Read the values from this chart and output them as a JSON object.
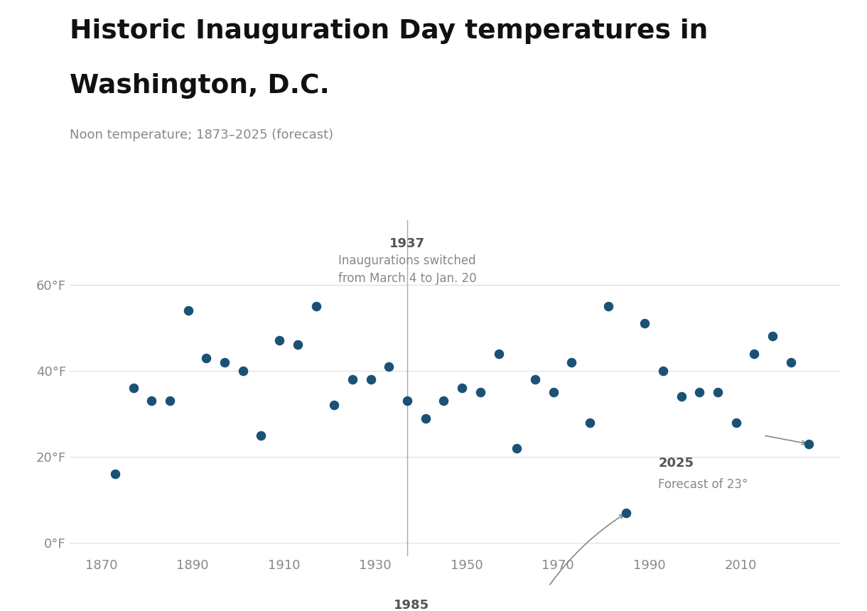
{
  "title_line1": "Historic Inauguration Day temperatures in",
  "title_line2": "Washington, D.C.",
  "subtitle": "Noon temperature; 1873–2025 (forecast)",
  "dot_color": "#1a5276",
  "background_color": "#ffffff",
  "xlim": [
    1863,
    2032
  ],
  "ylim": [
    -3,
    75
  ],
  "yticks": [
    0,
    20,
    40,
    60
  ],
  "ytick_labels": [
    "0°F",
    "20°F",
    "40°F",
    "60°F"
  ],
  "xticks": [
    1870,
    1890,
    1910,
    1930,
    1950,
    1970,
    1990,
    2010
  ],
  "vline_x": 1937,
  "data": [
    [
      1873,
      16
    ],
    [
      1877,
      36
    ],
    [
      1881,
      33
    ],
    [
      1885,
      33
    ],
    [
      1889,
      54
    ],
    [
      1893,
      43
    ],
    [
      1897,
      42
    ],
    [
      1901,
      40
    ],
    [
      1905,
      25
    ],
    [
      1909,
      47
    ],
    [
      1913,
      46
    ],
    [
      1917,
      55
    ],
    [
      1921,
      32
    ],
    [
      1925,
      38
    ],
    [
      1929,
      38
    ],
    [
      1933,
      41
    ],
    [
      1937,
      33
    ],
    [
      1941,
      29
    ],
    [
      1945,
      33
    ],
    [
      1949,
      36
    ],
    [
      1953,
      35
    ],
    [
      1957,
      44
    ],
    [
      1961,
      22
    ],
    [
      1965,
      38
    ],
    [
      1969,
      35
    ],
    [
      1973,
      42
    ],
    [
      1977,
      28
    ],
    [
      1981,
      55
    ],
    [
      1985,
      7
    ],
    [
      1989,
      51
    ],
    [
      1993,
      40
    ],
    [
      1997,
      34
    ],
    [
      2001,
      35
    ],
    [
      2005,
      35
    ],
    [
      2009,
      28
    ],
    [
      2013,
      44
    ],
    [
      2017,
      48
    ],
    [
      2021,
      42
    ],
    [
      2025,
      23
    ]
  ]
}
